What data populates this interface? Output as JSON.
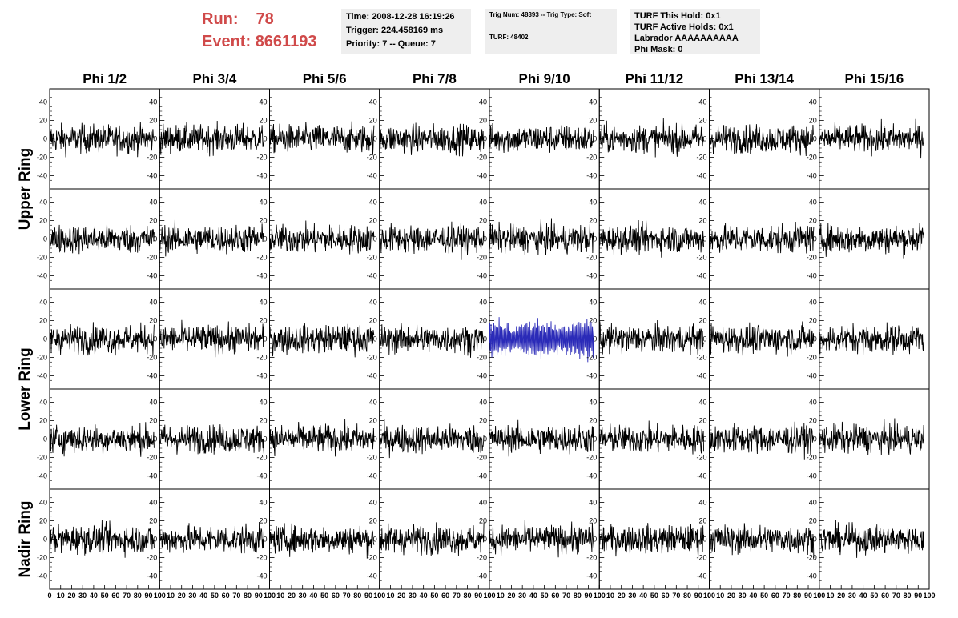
{
  "header": {
    "run_label": "Run:",
    "run_value": "78",
    "event_label": "Event:",
    "event_value": "8661193"
  },
  "time_box": {
    "time": "Time: 2008-12-28 16:19:26",
    "trigger": "Trigger: 224.458169 ms",
    "priority": "Priority: 7 -- Queue: 7"
  },
  "trig_box": {
    "trig": "Trig Num: 48393 -- Trig Type: Soft",
    "turf": "TURF: 48402"
  },
  "turf_box": {
    "this_hold": "TURF This Hold: 0x1",
    "active_holds": "TURF Active Holds: 0x1",
    "labrador": "Labrador AAAAAAAAAA",
    "phi_mask": "Phi Mask: 0"
  },
  "chart_data": {
    "type": "line",
    "columns": [
      "Phi 1/2",
      "Phi 3/4",
      "Phi 5/6",
      "Phi 7/8",
      "Phi 9/10",
      "Phi 11/12",
      "Phi 13/14",
      "Phi 15/16"
    ],
    "ring_labels": [
      "Upper Ring",
      "Lower Ring",
      "Nadir Ring"
    ],
    "rows": 5,
    "ring_row_spans": [
      [
        0,
        1
      ],
      [
        2,
        3
      ],
      [
        4,
        4
      ]
    ],
    "xlim": [
      0,
      100
    ],
    "ylim": [
      -50,
      50
    ],
    "y_ticks": [
      -40,
      -20,
      0,
      20,
      40
    ],
    "x_ticks": [
      0,
      10,
      20,
      30,
      40,
      50,
      60,
      70,
      80,
      90,
      100
    ],
    "x_tick_labels": [
      "0",
      "10",
      "20",
      "30",
      "40",
      "50",
      "60",
      "70",
      "80",
      "90",
      "100"
    ],
    "default_trace": {
      "color": "#000000",
      "amplitude": 14
    },
    "highlight_trace": {
      "row": 2,
      "col": 4,
      "color": "#2b2bb8",
      "amplitude": 18
    },
    "samples_per_trace": 260,
    "x_data_max": 95
  }
}
